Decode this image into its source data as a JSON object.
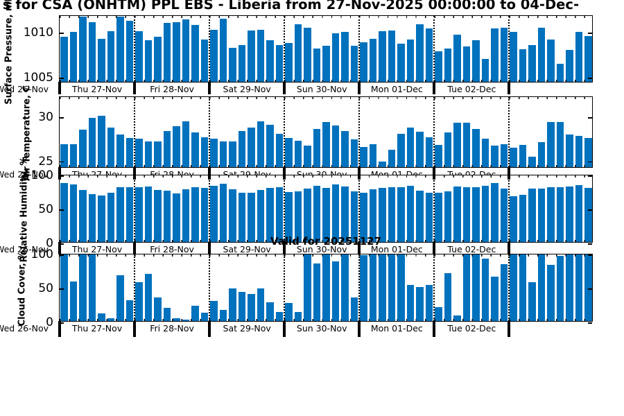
{
  "title": "s for CSA (ONHTM) PPL EBS  - Liberia from 27-Nov-2025 00:00:00 to 04-Dec-",
  "annotation": "Valid for 20251127",
  "colors": {
    "bar": "#0072BD",
    "axis": "#000000",
    "background": "#ffffff"
  },
  "x_axis": {
    "left_outside_label": "Wed 26-Nov",
    "day_labels": [
      "Thu 27-Nov",
      "Fri 28-Nov",
      "Sat 29-Nov",
      "Sun 30-Nov",
      "Mon 01-Dec",
      "Tue 02-Dec"
    ],
    "days_shown": 7,
    "points_per_day": 8,
    "interval_hours": 3
  },
  "chart_data": [
    {
      "type": "bar",
      "ylabel": "Surface Pressure, mb",
      "ytick_labels": [
        "1010",
        "1005"
      ],
      "ytick_values": [
        1010,
        1005
      ],
      "ylim": [
        1004.4,
        1011.85
      ],
      "x_start": "27-Nov-2025 00:00",
      "x_step_hours": 3,
      "values": [
        1009.4,
        1009.9,
        1011.6,
        1011.0,
        1009.2,
        1010.0,
        1011.6,
        1011.2,
        1010.0,
        1009.0,
        1009.4,
        1010.9,
        1011.0,
        1011.3,
        1010.7,
        1009.1,
        1010.2,
        1011.4,
        1008.2,
        1008.5,
        1010.1,
        1010.2,
        1009.0,
        1008.5,
        1008.7,
        1010.8,
        1010.4,
        1008.1,
        1008.4,
        1009.8,
        1009.9,
        1008.4,
        1008.8,
        1009.2,
        1010.0,
        1010.1,
        1008.6,
        1009.1,
        1010.8,
        1010.3,
        1007.8,
        1008.1,
        1009.6,
        1008.3,
        1009.0,
        1006.9,
        1010.3,
        1010.4,
        1009.9,
        1008.0,
        1008.5,
        1010.4,
        1009.1,
        1006.4,
        1007.9,
        1009.9,
        1009.5
      ]
    },
    {
      "type": "bar",
      "ylabel": "Air Temperature, C",
      "ytick_labels": [
        "30",
        "25"
      ],
      "ytick_values": [
        30,
        25
      ],
      "ylim": [
        24.2,
        32.27
      ],
      "x_start": "27-Nov-2025 00:00",
      "x_step_hours": 3,
      "values": [
        26.8,
        26.8,
        28.4,
        29.8,
        30.0,
        28.7,
        27.9,
        27.5,
        27.4,
        27.1,
        27.1,
        28.3,
        28.8,
        29.4,
        28.1,
        27.6,
        27.4,
        27.1,
        27.1,
        28.3,
        28.7,
        29.4,
        29.0,
        28.0,
        27.5,
        27.2,
        26.6,
        28.5,
        29.3,
        28.9,
        28.3,
        27.3,
        26.5,
        26.8,
        24.8,
        26.2,
        28.0,
        28.7,
        28.2,
        27.6,
        26.7,
        28.1,
        29.2,
        29.2,
        28.5,
        27.4,
        26.6,
        26.8,
        26.4,
        26.7,
        25.4,
        27.0,
        29.3,
        29.3,
        27.9,
        27.7,
        27.5
      ]
    },
    {
      "type": "bar",
      "ylabel": "Relative Humidity, %",
      "ytick_labels": [
        "100",
        "50",
        "0"
      ],
      "ytick_values": [
        100,
        50,
        0
      ],
      "ylim": [
        0,
        100
      ],
      "x_start": "27-Nov-2025 00:00",
      "x_step_hours": 3,
      "values": [
        87,
        85,
        77,
        70,
        68,
        73,
        81,
        81,
        81,
        82,
        77,
        76,
        71,
        78,
        81,
        80,
        83,
        86,
        78,
        72,
        73,
        77,
        80,
        81,
        74,
        75,
        79,
        83,
        80,
        85,
        82,
        75,
        73,
        78,
        80,
        81,
        81,
        83,
        76,
        72,
        72,
        75,
        82,
        81,
        81,
        83,
        87,
        79,
        67,
        69,
        79,
        79,
        81,
        81,
        82,
        84,
        80
      ]
    },
    {
      "type": "bar",
      "ylabel": "Cloud Cover, %",
      "ytick_labels": [
        "100",
        "50",
        "0"
      ],
      "ytick_values": [
        100,
        50,
        0
      ],
      "ylim": [
        0,
        100
      ],
      "x_start": "27-Nov-2025 00:00",
      "x_step_hours": 3,
      "values": [
        100,
        58,
        100,
        100,
        11,
        4,
        67,
        31,
        57,
        69,
        35,
        19,
        4,
        2,
        22,
        12,
        30,
        16,
        48,
        43,
        40,
        48,
        28,
        13,
        27,
        13,
        100,
        85,
        100,
        88,
        100,
        35,
        97,
        100,
        100,
        100,
        100,
        53,
        50,
        53,
        20,
        70,
        8,
        100,
        100,
        92,
        65,
        84,
        100,
        100,
        57,
        100,
        83,
        96,
        100,
        100,
        100
      ]
    }
  ]
}
